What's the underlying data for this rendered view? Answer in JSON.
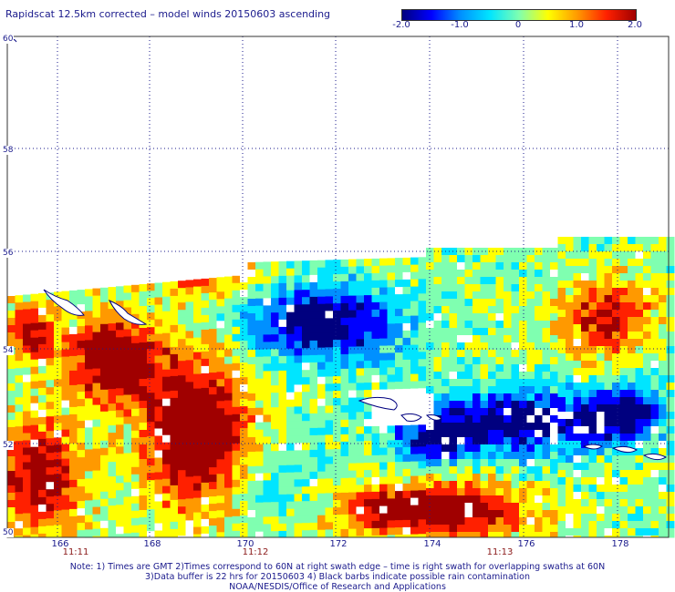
{
  "title": "Rapidscat 12.5km corrected – model winds 20150603 ascending",
  "colorbar": {
    "ticks": [
      "-2.0",
      "-1.0",
      "0",
      "1.0",
      "2.0"
    ],
    "range": [
      -2.0,
      2.0
    ],
    "colors": [
      "#00007f",
      "#0000ff",
      "#0090ff",
      "#00e5ff",
      "#7fffb0",
      "#ffff00",
      "#ff9900",
      "#ff2000",
      "#a00000"
    ]
  },
  "map": {
    "lat_labels": [
      "60",
      "58",
      "56",
      "54",
      "52",
      "50"
    ],
    "lon_labels": [
      "166",
      "168",
      "170",
      "172",
      "174",
      "176",
      "178"
    ],
    "time_labels": [
      "11:11",
      "11:12",
      "11:13"
    ],
    "grid": "dotted",
    "coastline_color": "#00007f",
    "rain_flag_color": "#000000"
  },
  "notes": [
    "Note: 1) Times are GMT 2)Times correspond to 60N at right swath edge – time is right swath for overlapping swaths at 60N",
    "3)Data buffer is 22 hrs for 20150603 4) Black barbs indicate possible rain contamination",
    "NOAA/NESDIS/Office of Research and Applications"
  ]
}
